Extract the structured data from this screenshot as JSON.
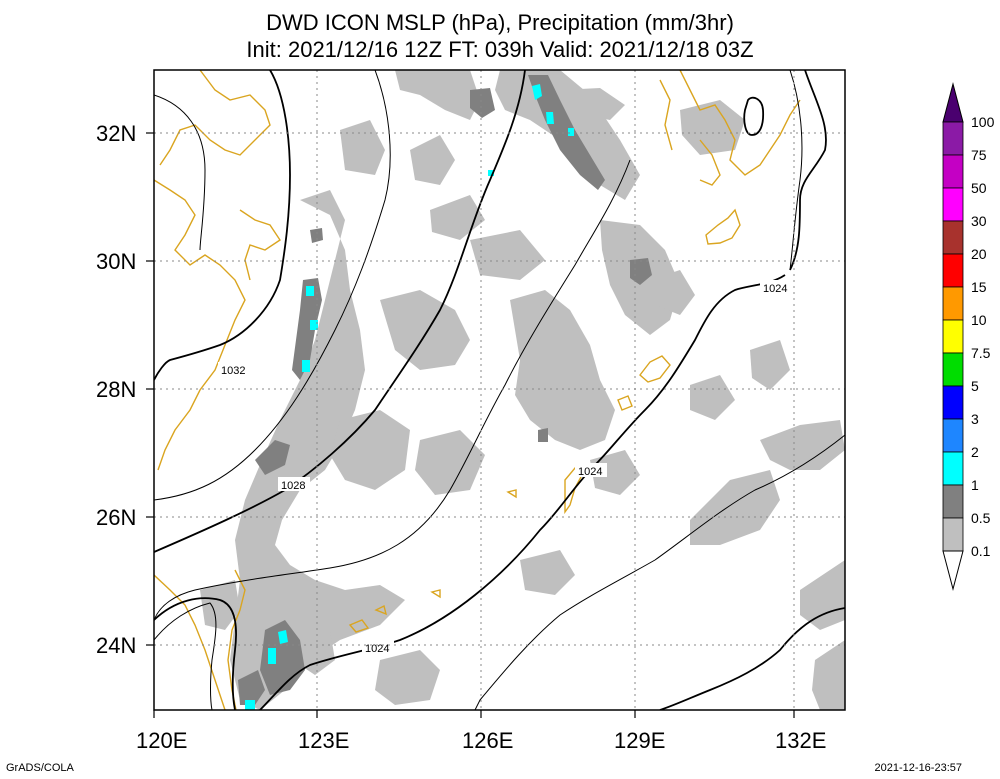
{
  "title": {
    "line1": "DWD ICON MSLP (hPa), Precipitation (mm/3hr)",
    "line2": "Init: 2021/12/16 12Z  FT: 039h  Valid: 2021/12/18 03Z"
  },
  "axes": {
    "lon_labels": [
      "120E",
      "123E",
      "126E",
      "129E",
      "132E"
    ],
    "lat_labels": [
      "32N",
      "30N",
      "28N",
      "26N",
      "24N"
    ]
  },
  "isobar_labels": [
    "1032",
    "1028",
    "1024",
    "1024",
    "1024"
  ],
  "colorbar": {
    "labels": [
      "100",
      "75",
      "50",
      "30",
      "20",
      "15",
      "10",
      "7.5",
      "5",
      "3",
      "2",
      "1",
      "0.5",
      "0.1"
    ],
    "colors": [
      "#4a006f",
      "#8b1aa6",
      "#c400c4",
      "#ff00ff",
      "#a8322d",
      "#ff0000",
      "#ff9900",
      "#ffff00",
      "#00dd00",
      "#0000ff",
      "#1e86ff",
      "#00ffff",
      "#808080",
      "#bfbfbf",
      "#ffffff"
    ]
  },
  "colors": {
    "coast": "#daa520",
    "precip_light": "#bfbfbf",
    "precip_mid": "#808080",
    "precip_heavy": "#00ffff",
    "isobar": "#000000"
  },
  "footer": {
    "left": "GrADS/COLA",
    "right": "2021-12-16-23:57"
  }
}
